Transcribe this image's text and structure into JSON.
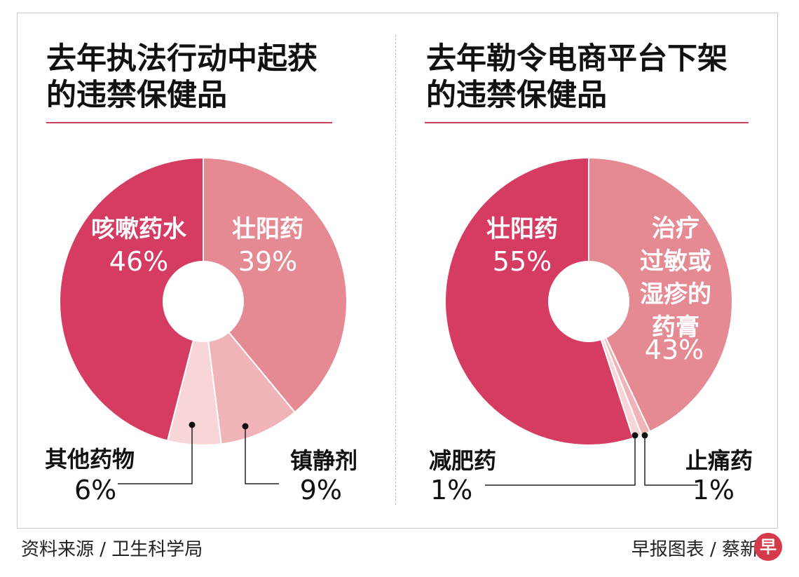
{
  "chart_data": [
    {
      "type": "pie",
      "variant": "donut",
      "title": "去年执法行动中起获的违禁保健品",
      "title_lines": [
        "去年执法行动中起获",
        "的违禁保健品"
      ],
      "categories": [
        "壮阳药",
        "镇静剂",
        "其他药物",
        "咳嗽药水"
      ],
      "values": [
        39,
        9,
        6,
        46
      ],
      "value_labels": [
        "39%",
        "9%",
        "6%",
        "46%"
      ],
      "colors": [
        "#e58a93",
        "#f0b4b8",
        "#f8d5d7",
        "#d63c62"
      ],
      "label_position": [
        "inside",
        "outside-bottom-right",
        "outside-bottom-left",
        "inside"
      ]
    },
    {
      "type": "pie",
      "variant": "donut",
      "title": "去年勒令电商平台下架的违禁保健品",
      "title_lines": [
        "去年勒令电商平台下架",
        "的违禁保健品"
      ],
      "categories": [
        "治疗过敏或湿疹的药膏",
        "止痛药",
        "减肥药",
        "壮阳药"
      ],
      "category_lines": [
        [
          "治疗",
          "过敏或",
          "湿疹的",
          "药膏"
        ],
        [
          "止痛药"
        ],
        [
          "减肥药"
        ],
        [
          "壮阳药"
        ]
      ],
      "values": [
        43,
        1,
        1,
        55
      ],
      "value_labels": [
        "43%",
        "1%",
        "1%",
        "55%"
      ],
      "colors": [
        "#e58a93",
        "#f0b4b8",
        "#f8d5d7",
        "#d63c62"
      ],
      "label_position": [
        "inside",
        "outside-bottom-right",
        "outside-bottom-left",
        "inside"
      ]
    }
  ],
  "footer": {
    "source": "资料来源 / 卫生科学局",
    "credit": "早报图表 / 蔡新"
  },
  "brand": {
    "badge_text": "早",
    "badge_color": "#d43a4a"
  },
  "colors": {
    "accent_rule": "#c9415f",
    "label_dark": "#111111",
    "label_light": "#ffffff"
  }
}
